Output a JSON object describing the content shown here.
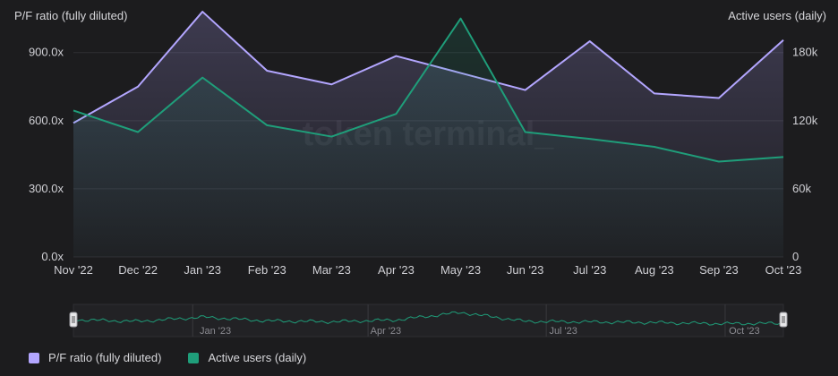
{
  "chart_data": {
    "type": "line",
    "left_axis_title": "P/F ratio (fully diluted)",
    "right_axis_title": "Active users (daily)",
    "watermark": "token terminal_",
    "categories": [
      "Nov '22",
      "Dec '22",
      "Jan '23",
      "Feb '23",
      "Mar '23",
      "Apr '23",
      "May '23",
      "Jun '23",
      "Jul '23",
      "Aug '23",
      "Sep '23",
      "Oct '23"
    ],
    "left_ticks": [
      "0.0x",
      "300.0x",
      "600.0x",
      "900.0x"
    ],
    "left_tick_values": [
      0,
      300,
      600,
      900
    ],
    "right_ticks": [
      "0",
      "60k",
      "120k",
      "180k"
    ],
    "right_tick_values": [
      0,
      60000,
      120000,
      180000
    ],
    "left_ylim": [
      0,
      1100
    ],
    "right_ylim": [
      0,
      220000
    ],
    "series": [
      {
        "name": "P/F ratio (fully diluted)",
        "axis": "left",
        "color": "#b3a6ff",
        "values": [
          590,
          750,
          1080,
          820,
          760,
          885,
          810,
          735,
          950,
          720,
          700,
          955
        ]
      },
      {
        "name": "Active users (daily)",
        "axis": "right",
        "color": "#1f9e7a",
        "values": [
          129000,
          110000,
          158000,
          116000,
          106000,
          126000,
          210000,
          110000,
          104000,
          97000,
          84000,
          88000
        ]
      }
    ],
    "navigator_labels": [
      "Jan '23",
      "Apr '23",
      "Jul '23",
      "Oct '23"
    ],
    "legend_position": "bottom-left",
    "grid": true
  }
}
